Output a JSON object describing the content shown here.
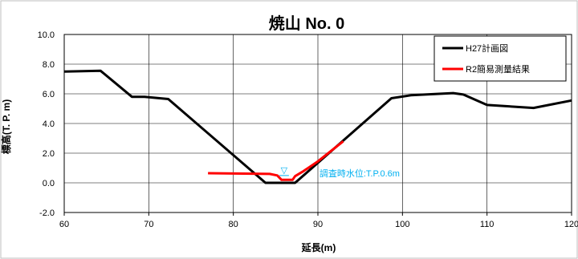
{
  "chart_data": {
    "type": "line",
    "title": "焼山 No. 0",
    "xlabel": "延長(m)",
    "ylabel": "標高(T. P. m)",
    "xlim": [
      60,
      120
    ],
    "ylim": [
      -2.0,
      10.0
    ],
    "x_ticks": [
      "60",
      "70",
      "80",
      "90",
      "100",
      "110",
      "120"
    ],
    "y_ticks": [
      "-2.0",
      "0.0",
      "2.0",
      "4.0",
      "6.0",
      "8.0",
      "10.0"
    ],
    "grid": true,
    "legend_position": "top-right",
    "series": [
      {
        "name": "H27計画図",
        "color": "#000000",
        "points": [
          [
            60,
            7.5
          ],
          [
            64.3,
            7.55
          ],
          [
            68,
            5.8
          ],
          [
            69.5,
            5.8
          ],
          [
            72.3,
            5.65
          ],
          [
            83.8,
            0.0
          ],
          [
            87.3,
            0.0
          ],
          [
            98.7,
            5.7
          ],
          [
            101,
            5.9
          ],
          [
            106,
            6.05
          ],
          [
            107.2,
            5.95
          ],
          [
            110,
            5.25
          ],
          [
            115.5,
            5.05
          ],
          [
            120,
            5.55
          ]
        ]
      },
      {
        "name": "R2簡易測量結果",
        "color": "#ff0000",
        "points": [
          [
            77,
            0.65
          ],
          [
            84.3,
            0.6
          ],
          [
            85.2,
            0.5
          ],
          [
            85.7,
            0.2
          ],
          [
            87,
            0.2
          ],
          [
            87.3,
            0.45
          ],
          [
            88.2,
            0.75
          ],
          [
            90,
            1.45
          ],
          [
            93,
            2.8
          ]
        ]
      }
    ],
    "annotations": {
      "water_level_text": "調査時水位:T.P.0.6m",
      "water_level_marker": "▽",
      "water_level_x": 86,
      "water_level_y": 0.6,
      "color": "#00b0f0"
    }
  }
}
